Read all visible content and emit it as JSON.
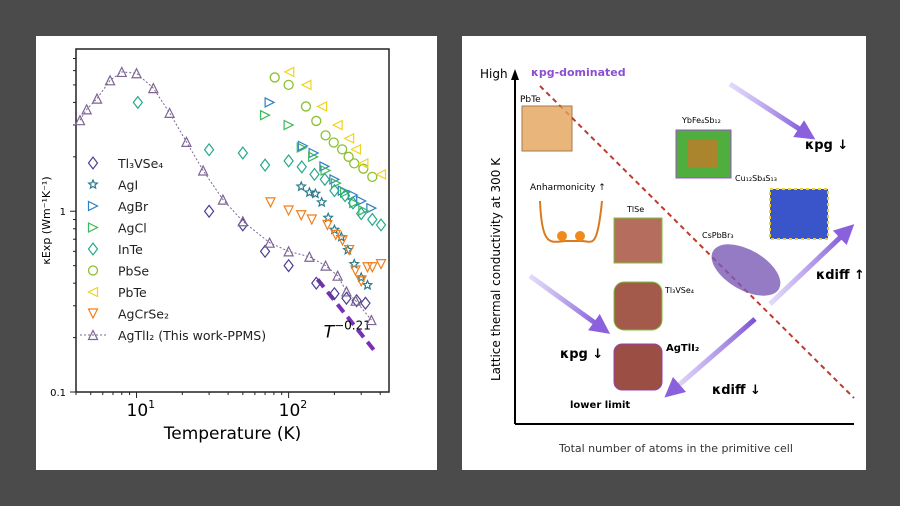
{
  "chart_data": [
    {
      "type": "scatter",
      "xscale": "log",
      "yscale": "log",
      "xlim": [
        4,
        457
      ],
      "ylim": [
        0.1,
        7.9
      ],
      "xlabel": "Temperature (K)",
      "ylabel": "κExp (Wm⁻¹K⁻¹)",
      "xticks": [
        {
          "v": 10,
          "base": "10",
          "exp": "1"
        },
        {
          "v": 100,
          "base": "10",
          "exp": "2"
        }
      ],
      "yticks": [
        {
          "v": 1,
          "label": "1"
        },
        {
          "v": 0.1,
          "label": "0.1"
        }
      ],
      "legend_position": "center-left",
      "annotation": {
        "base": "T",
        "exp": "−0.21",
        "x": 200,
        "y": 0.2
      },
      "fit_line": {
        "x": [
          155,
          365
        ],
        "y": [
          0.42,
          0.17
        ],
        "color": "#7b2fb5"
      },
      "series": [
        {
          "name": "Tl3VSe4",
          "label": "Tl₃VSe₄",
          "marker": "diamond",
          "color": "#4b3f93",
          "x": [
            30,
            50,
            70,
            100,
            152,
            200,
            240,
            280,
            320
          ],
          "y": [
            1.0,
            0.84,
            0.6,
            0.5,
            0.4,
            0.35,
            0.33,
            0.32,
            0.31
          ]
        },
        {
          "name": "AgI",
          "label": "AgI",
          "marker": "star",
          "color": "#2b7b8c",
          "x": [
            121,
            137,
            150,
            165,
            182,
            200,
            222,
            245,
            270,
            300,
            330
          ],
          "y": [
            1.37,
            1.27,
            1.25,
            1.12,
            0.92,
            0.79,
            0.72,
            0.61,
            0.51,
            0.43,
            0.39
          ]
        },
        {
          "name": "AgBr",
          "label": "AgBr",
          "marker": "triangle-right",
          "color": "#2f7fc1",
          "x": [
            75,
            124,
            146,
            172,
            200,
            227,
            264,
            300,
            350
          ],
          "y": [
            4.0,
            2.3,
            2.1,
            1.77,
            1.5,
            1.3,
            1.23,
            1.14,
            1.04
          ]
        },
        {
          "name": "AgCl",
          "label": "AgCl",
          "marker": "triangle-right",
          "color": "#3db85a",
          "x": [
            70,
            100,
            122,
            145,
            175,
            205,
            235,
            270,
            310
          ],
          "y": [
            3.4,
            3.0,
            2.25,
            2.0,
            1.68,
            1.43,
            1.27,
            1.11,
            1.01
          ]
        },
        {
          "name": "InTe",
          "label": "InTe",
          "marker": "diamond",
          "color": "#26a98a",
          "x": [
            10.2,
            30,
            50,
            70,
            100,
            122,
            148,
            173,
            200,
            235,
            265,
            300,
            355,
            405
          ],
          "y": [
            4.0,
            2.19,
            2.1,
            1.8,
            1.9,
            1.76,
            1.6,
            1.5,
            1.3,
            1.22,
            1.11,
            0.97,
            0.9,
            0.84
          ]
        },
        {
          "name": "PbSe",
          "label": "PbSe",
          "marker": "circle",
          "color": "#8cbf2f",
          "x": [
            81,
            100,
            130,
            152,
            175,
            198,
            225,
            248,
            270,
            310,
            355
          ],
          "y": [
            5.5,
            5.0,
            3.8,
            3.16,
            2.63,
            2.4,
            2.2,
            2.0,
            1.84,
            1.72,
            1.55
          ]
        },
        {
          "name": "PbTe",
          "label": "PbTe",
          "marker": "triangle-left",
          "color": "#f2d31c",
          "x": [
            101,
            131,
            166,
            210,
            250,
            277,
            310,
            405
          ],
          "y": [
            5.9,
            5.0,
            3.8,
            3.0,
            2.53,
            2.2,
            1.84,
            1.6
          ]
        },
        {
          "name": "AgCrSe2",
          "label": "AgCrSe₂",
          "marker": "triangle-down",
          "color": "#f07f1d",
          "x": [
            76,
            100,
            121,
            142,
            180,
            204,
            226,
            250,
            275,
            300,
            330,
            355,
            405
          ],
          "y": [
            1.12,
            1.01,
            0.95,
            0.9,
            0.84,
            0.74,
            0.69,
            0.61,
            0.47,
            0.41,
            0.49,
            0.49,
            0.51
          ]
        },
        {
          "name": "AgTlI2",
          "label": "AgTlI₂ (This work-PPMS)",
          "marker": "triangle-up",
          "color": "#7d6594",
          "x": [
            4.25,
            4.7,
            5.5,
            6.7,
            8,
            10,
            12.9,
            16.5,
            21.3,
            27.4,
            37,
            50,
            75,
            100,
            137,
            175,
            210,
            240,
            276,
            350
          ],
          "y": [
            3.19,
            3.66,
            4.2,
            5.3,
            5.9,
            5.8,
            4.8,
            3.5,
            2.42,
            1.68,
            1.16,
            0.88,
            0.67,
            0.6,
            0.56,
            0.5,
            0.44,
            0.36,
            0.32,
            0.25
          ]
        }
      ]
    }
  ],
  "diagram": {
    "ylabel": "Lattice thermal conductivity at 300 K",
    "xlabel": "Total number of atoms in the primitive cell",
    "high": "High",
    "kpg_dominated": "κpg-dominated",
    "anharmonicity": "Anharmonicity",
    "lower_limit": "lower limit",
    "kpg": "κpg",
    "kdiff": "κdiff",
    "materials": {
      "pbte": "PbTe",
      "ybfe": "YbFe₄Sb₁₂",
      "cu": "Cu₁₂Sb₄S₁₃",
      "tlse": "TlSe",
      "cspbbr": "CsPbBr₃",
      "tl3vse4": "Tl₃VSe₄",
      "agtli2": "AgTlI₂"
    }
  }
}
